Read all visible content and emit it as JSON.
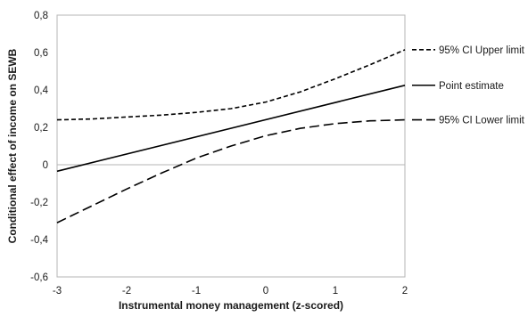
{
  "chart_data": {
    "type": "line",
    "title": "",
    "xlabel": "Instrumental money management (z-scored)",
    "ylabel": "Conditional effect of income on SEWB",
    "xlim": [
      -3,
      2
    ],
    "ylim": [
      -0.6,
      0.8
    ],
    "x_ticks": [
      "-3",
      "-2",
      "-1",
      "0",
      "1",
      "2"
    ],
    "y_ticks": [
      "0,8",
      "0,6",
      "0,4",
      "0,2",
      "0",
      "-0,2",
      "-0,4",
      "-0,6"
    ],
    "grid": false,
    "zero_line": true,
    "legend_placement": "right",
    "series": [
      {
        "name": "95% CI Upper limit",
        "style": "short-dash",
        "x": [
          -3,
          -2.5,
          -2,
          -1.5,
          -1,
          -0.5,
          0,
          0.5,
          1,
          1.5,
          2
        ],
        "y": [
          0.24,
          0.245,
          0.255,
          0.265,
          0.28,
          0.3,
          0.335,
          0.39,
          0.46,
          0.535,
          0.615
        ]
      },
      {
        "name": "Point estimate",
        "style": "solid",
        "x": [
          -3,
          2
        ],
        "y": [
          -0.035,
          0.425
        ]
      },
      {
        "name": "95% CI Lower limit",
        "style": "long-dash",
        "x": [
          -3,
          -2.5,
          -2,
          -1.5,
          -1,
          -0.5,
          0,
          0.5,
          1,
          1.5,
          2
        ],
        "y": [
          -0.31,
          -0.22,
          -0.13,
          -0.045,
          0.035,
          0.1,
          0.155,
          0.195,
          0.22,
          0.235,
          0.24
        ]
      }
    ]
  }
}
